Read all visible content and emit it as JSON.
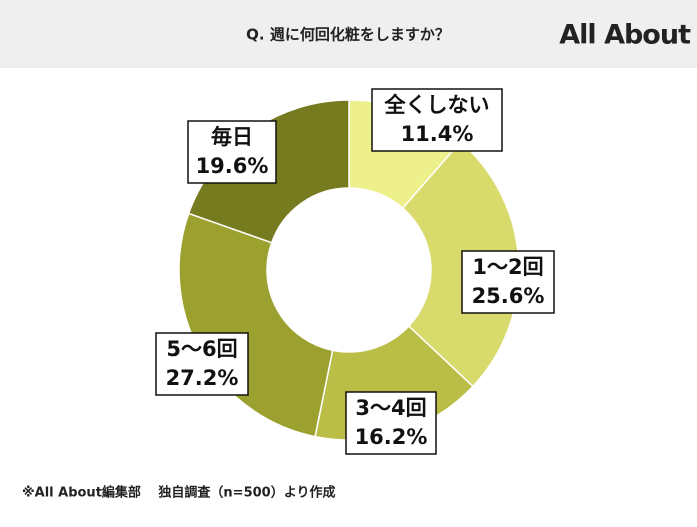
{
  "chart_data": {
    "type": "donut",
    "title": "Q. 週に何回化粧をしますか？",
    "brand": "All About",
    "note": "※All About編集部　 独自調査（n=500）より作成",
    "categories": [
      "全くしない",
      "1〜2回",
      "3〜4回",
      "5〜6回",
      "毎日"
    ],
    "values": [
      11.4,
      25.6,
      16.2,
      27.2,
      19.6
    ],
    "value_labels": [
      "11.4%",
      "25.6%",
      "16.2%",
      "27.2%",
      "19.6%"
    ],
    "colors": [
      "#eef08c",
      "#d8da6c",
      "#babe46",
      "#9ca02e",
      "#777b1f"
    ]
  }
}
